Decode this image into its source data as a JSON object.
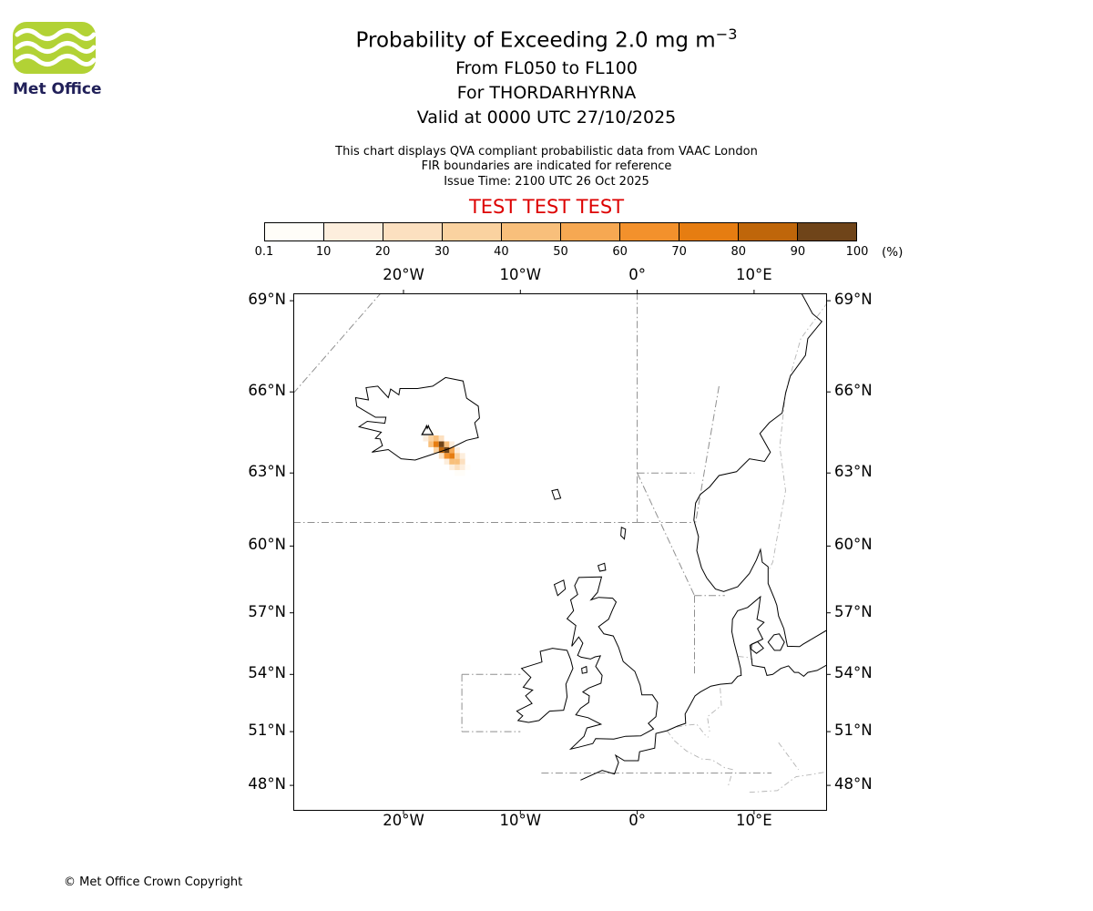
{
  "header": {
    "logo_text": "Met Office",
    "title_main": "Probability of Exceeding 2.0 mg m",
    "title_sup": "−3",
    "subtitle_flight_levels": "From FL050 to FL100",
    "subtitle_volcano": "For THORDARHYRNA",
    "subtitle_valid": "Valid at 0000 UTC 27/10/2025",
    "note_line1": "This chart displays QVA compliant probabilistic data from VAAC London",
    "note_line2": "FIR boundaries are indicated for reference",
    "note_line3": "Issue Time: 2100 UTC 26 Oct 2025",
    "test_banner": "TEST TEST TEST"
  },
  "colors": {
    "test_red": "#dd0000",
    "logo_green": "#b2d235",
    "logo_navy": "#212059",
    "fir_gray": "#8f8f8f",
    "border_gray": "#b5b5b5"
  },
  "colorbar": {
    "tick_labels": [
      "0.1",
      "10",
      "20",
      "30",
      "40",
      "50",
      "60",
      "70",
      "80",
      "90",
      "100"
    ],
    "unit_label": "(%)",
    "segment_colors": [
      "#fffdf8",
      "#fdeedd",
      "#fce0c0",
      "#fad2a0",
      "#f8bf7b",
      "#f6a852",
      "#f3912c",
      "#e67d11",
      "#bf660a",
      "#6f4419"
    ]
  },
  "map": {
    "lon_ticks": [
      {
        "label": "20°W",
        "lon": -20
      },
      {
        "label": "10°W",
        "lon": -10
      },
      {
        "label": "0°",
        "lon": 0
      },
      {
        "label": "10°E",
        "lon": 10
      }
    ],
    "lat_ticks": [
      {
        "label": "69°N",
        "lat": 69
      },
      {
        "label": "66°N",
        "lat": 66
      },
      {
        "label": "63°N",
        "lat": 63
      },
      {
        "label": "60°N",
        "lat": 60
      },
      {
        "label": "57°N",
        "lat": 57
      },
      {
        "label": "54°N",
        "lat": 54
      },
      {
        "label": "51°N",
        "lat": 51
      },
      {
        "label": "48°N",
        "lat": 48
      }
    ]
  },
  "footer": {
    "copyright_text": "© Met Office Crown Copyright"
  },
  "chart_data": {
    "type": "heatmap",
    "title": "Probability of Exceeding 2.0 mg m^-3",
    "threshold": "2.0 mg m^-3",
    "layer": "From FL050 to FL100",
    "volcano": {
      "name": "THORDARHYRNA",
      "marker_lon": -17.95,
      "marker_lat": 64.6
    },
    "valid_time": "0000 UTC 27/10/2025",
    "issue_time": "2100 UTC 26 Oct 2025",
    "source": "VAAC London",
    "projection": "mercator",
    "lon_range": [
      -29.43,
      16.23
    ],
    "lat_range": [
      46.5,
      69.25
    ],
    "probability_bin_edges_pct": [
      0.1,
      10,
      20,
      30,
      40,
      50,
      60,
      70,
      80,
      90,
      100
    ],
    "cell_size": {
      "dlon": 0.45,
      "dlat": 0.22
    },
    "plume_cells_format": [
      "lon",
      "lat",
      "probability_pct"
    ],
    "plume_cells": [
      [
        -18.1,
        64.54,
        5
      ],
      [
        -17.65,
        64.54,
        8
      ],
      [
        -17.2,
        64.54,
        6
      ],
      [
        -18.1,
        64.32,
        10
      ],
      [
        -17.65,
        64.32,
        30
      ],
      [
        -17.2,
        64.32,
        45
      ],
      [
        -16.75,
        64.32,
        20
      ],
      [
        -17.65,
        64.1,
        40
      ],
      [
        -17.2,
        64.1,
        70
      ],
      [
        -16.75,
        64.1,
        90
      ],
      [
        -16.3,
        64.1,
        40
      ],
      [
        -15.85,
        64.1,
        10
      ],
      [
        -17.2,
        63.88,
        30
      ],
      [
        -16.75,
        63.88,
        85
      ],
      [
        -16.3,
        63.88,
        95
      ],
      [
        -15.85,
        63.88,
        50
      ],
      [
        -15.4,
        63.88,
        15
      ],
      [
        -16.75,
        63.66,
        25
      ],
      [
        -16.3,
        63.66,
        60
      ],
      [
        -15.85,
        63.66,
        70
      ],
      [
        -15.4,
        63.66,
        35
      ],
      [
        -14.95,
        63.66,
        10
      ],
      [
        -16.3,
        63.44,
        15
      ],
      [
        -15.85,
        63.44,
        40
      ],
      [
        -15.4,
        63.44,
        45
      ],
      [
        -14.95,
        63.44,
        20
      ],
      [
        -15.85,
        63.22,
        10
      ],
      [
        -15.4,
        63.22,
        25
      ],
      [
        -14.95,
        63.22,
        12
      ],
      [
        -14.5,
        63.22,
        5
      ],
      [
        -15.4,
        63.0,
        6
      ],
      [
        -14.95,
        63.0,
        5
      ]
    ]
  }
}
